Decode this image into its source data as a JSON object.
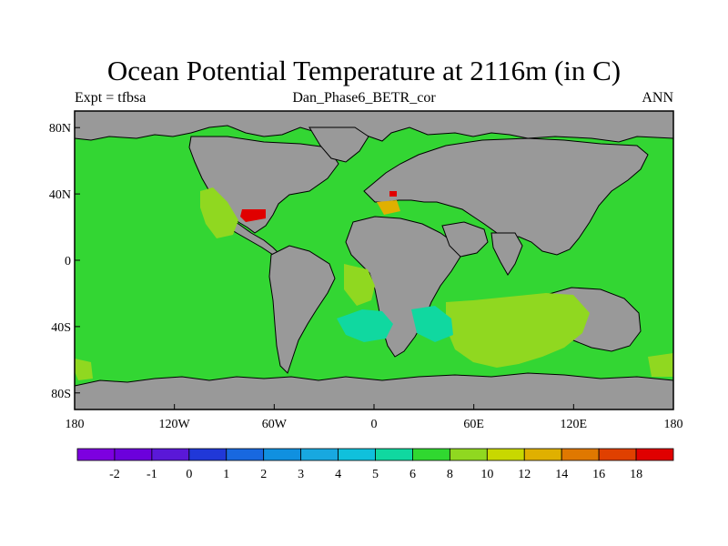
{
  "title": "Ocean Potential Temperature at 2116m (in C)",
  "header": {
    "left": "Expt = tfbsa",
    "center": "Dan_Phase6_BETR_cor",
    "right": "ANN"
  },
  "map": {
    "projection": "cylindrical-equidistant",
    "lon_range": [
      -180,
      180
    ],
    "lat_range": [
      -90,
      90
    ],
    "x_ticks": [
      {
        "value": -180,
        "label": "180"
      },
      {
        "value": -120,
        "label": "120W"
      },
      {
        "value": -60,
        "label": "60W"
      },
      {
        "value": 0,
        "label": "0"
      },
      {
        "value": 60,
        "label": "60E"
      },
      {
        "value": 120,
        "label": "120E"
      },
      {
        "value": 180,
        "label": "180"
      }
    ],
    "y_ticks": [
      {
        "value": 80,
        "label": "80N"
      },
      {
        "value": 40,
        "label": "40N"
      },
      {
        "value": 0,
        "label": "0"
      },
      {
        "value": -40,
        "label": "40S"
      },
      {
        "value": -80,
        "label": "80S"
      }
    ],
    "land_color": "#999999",
    "dominant_ocean_color": "#33d633"
  },
  "colorbar": {
    "labels": [
      "-2",
      "-1",
      "0",
      "1",
      "2",
      "3",
      "4",
      "5",
      "6",
      "8",
      "10",
      "12",
      "14",
      "16",
      "18"
    ],
    "colors": [
      "#7d00e0",
      "#6c00dc",
      "#5a18d8",
      "#2038d8",
      "#1868e0",
      "#1090e0",
      "#18a8e0",
      "#10c0dc",
      "#10d8a0",
      "#30d830",
      "#90d820",
      "#c8d800",
      "#e0b000",
      "#e07800",
      "#e04000",
      "#e00000"
    ]
  }
}
